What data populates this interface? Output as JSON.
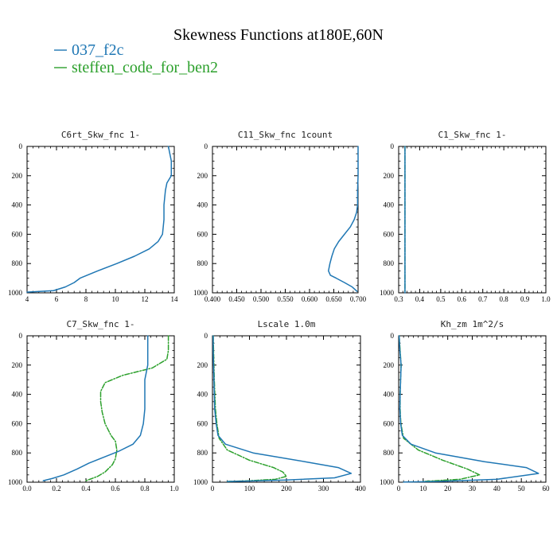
{
  "figure": {
    "title": "Skewness Functions at180E,60N"
  },
  "legend": [
    {
      "name": "037_f2c",
      "color": "#1f77b4",
      "dash": "solid"
    },
    {
      "name": "steffen_code_for_ben2",
      "color": "#2ca02c",
      "dash": "dashdot"
    }
  ],
  "chart_data": [
    {
      "type": "line",
      "title": "C6rt_Skw_fnc   1-",
      "xlim": [
        4,
        14
      ],
      "ylim": [
        1000,
        0
      ],
      "xticks": [
        "4",
        "6",
        "8",
        "10",
        "12",
        "14"
      ],
      "yticks": [
        "0",
        "200",
        "400",
        "600",
        "800",
        "1000"
      ],
      "series": [
        {
          "name": "037_f2c",
          "points": [
            [
              13.6,
              0
            ],
            [
              13.7,
              50
            ],
            [
              13.8,
              100
            ],
            [
              13.8,
              200
            ],
            [
              13.5,
              250
            ],
            [
              13.4,
              300
            ],
            [
              13.3,
              400
            ],
            [
              13.3,
              500
            ],
            [
              13.2,
              600
            ],
            [
              12.9,
              650
            ],
            [
              12.3,
              700
            ],
            [
              11.3,
              750
            ],
            [
              10.1,
              800
            ],
            [
              8.8,
              850
            ],
            [
              7.6,
              900
            ],
            [
              7.2,
              930
            ],
            [
              6.6,
              960
            ],
            [
              5.8,
              985
            ],
            [
              4,
              995
            ]
          ]
        },
        {
          "name": "steffen_code_for_ben2",
          "points": []
        }
      ]
    },
    {
      "type": "line",
      "title": "C11_Skw_fnc   1count",
      "xlim": [
        0.4,
        0.7
      ],
      "ylim": [
        1000,
        0
      ],
      "xticks": [
        "0.400",
        "0.450",
        "0.500",
        "0.550",
        "0.600",
        "0.650",
        "0.700"
      ],
      "yticks": [
        "0",
        "200",
        "400",
        "600",
        "800",
        "1000"
      ],
      "series": [
        {
          "name": "037_f2c",
          "points": [
            [
              0.7,
              0
            ],
            [
              0.7,
              100
            ],
            [
              0.7,
              200
            ],
            [
              0.699,
              300
            ],
            [
              0.699,
              400
            ],
            [
              0.697,
              450
            ],
            [
              0.692,
              500
            ],
            [
              0.684,
              550
            ],
            [
              0.672,
              600
            ],
            [
              0.66,
              650
            ],
            [
              0.651,
              700
            ],
            [
              0.646,
              750
            ],
            [
              0.642,
              800
            ],
            [
              0.639,
              850
            ],
            [
              0.643,
              880
            ],
            [
              0.655,
              900
            ],
            [
              0.672,
              930
            ],
            [
              0.688,
              960
            ],
            [
              0.698,
              990
            ]
          ]
        },
        {
          "name": "steffen_code_for_ben2",
          "points": []
        }
      ]
    },
    {
      "type": "line",
      "title": "C1_Skw_fnc   1-",
      "xlim": [
        0.3,
        1.0
      ],
      "ylim": [
        1000,
        0
      ],
      "xticks": [
        "0.3",
        "0.4",
        "0.5",
        "0.6",
        "0.7",
        "0.8",
        "0.9",
        "1.0"
      ],
      "yticks": [
        "0",
        "200",
        "400",
        "600",
        "800",
        "1000"
      ],
      "series": [
        {
          "name": "037_f2c",
          "points": [
            [
              0.33,
              0
            ],
            [
              0.33,
              1000
            ]
          ]
        },
        {
          "name": "steffen_code_for_ben2",
          "points": [
            [
              0.33,
              0
            ],
            [
              0.33,
              1000
            ]
          ]
        }
      ]
    },
    {
      "type": "line",
      "title": "C7_Skw_fnc   1-",
      "xlim": [
        0.0,
        1.0
      ],
      "ylim": [
        1000,
        0
      ],
      "xticks": [
        "0.0",
        "0.2",
        "0.4",
        "0.6",
        "0.8",
        "1.0"
      ],
      "yticks": [
        "0",
        "200",
        "400",
        "600",
        "800",
        "1000"
      ],
      "series": [
        {
          "name": "037_f2c",
          "points": [
            [
              0.82,
              0
            ],
            [
              0.82,
              100
            ],
            [
              0.82,
              200
            ],
            [
              0.8,
              300
            ],
            [
              0.8,
              400
            ],
            [
              0.8,
              500
            ],
            [
              0.79,
              600
            ],
            [
              0.77,
              680
            ],
            [
              0.72,
              740
            ],
            [
              0.62,
              790
            ],
            [
              0.52,
              830
            ],
            [
              0.42,
              870
            ],
            [
              0.34,
              910
            ],
            [
              0.25,
              950
            ],
            [
              0.17,
              975
            ],
            [
              0.11,
              990
            ]
          ]
        },
        {
          "name": "steffen_code_for_ben2",
          "points": [
            [
              0.96,
              0
            ],
            [
              0.96,
              100
            ],
            [
              0.95,
              160
            ],
            [
              0.85,
              220
            ],
            [
              0.65,
              270
            ],
            [
              0.53,
              320
            ],
            [
              0.5,
              380
            ],
            [
              0.5,
              450
            ],
            [
              0.51,
              520
            ],
            [
              0.53,
              600
            ],
            [
              0.57,
              680
            ],
            [
              0.6,
              720
            ],
            [
              0.61,
              780
            ],
            [
              0.6,
              840
            ],
            [
              0.58,
              880
            ],
            [
              0.53,
              930
            ],
            [
              0.48,
              960
            ],
            [
              0.4,
              990
            ]
          ]
        }
      ]
    },
    {
      "type": "line",
      "title": "Lscale   1.0m",
      "xlim": [
        0,
        400
      ],
      "ylim": [
        1000,
        0
      ],
      "xticks": [
        "0",
        "100",
        "200",
        "300",
        "400"
      ],
      "yticks": [
        "0",
        "200",
        "400",
        "600",
        "800",
        "1000"
      ],
      "series": [
        {
          "name": "037_f2c",
          "points": [
            [
              2,
              0
            ],
            [
              2,
              100
            ],
            [
              4,
              300
            ],
            [
              6,
              500
            ],
            [
              10,
              600
            ],
            [
              15,
              680
            ],
            [
              35,
              740
            ],
            [
              110,
              800
            ],
            [
              250,
              860
            ],
            [
              340,
              900
            ],
            [
              375,
              940
            ],
            [
              330,
              970
            ],
            [
              200,
              985
            ],
            [
              100,
              992
            ],
            [
              40,
              995
            ]
          ]
        },
        {
          "name": "steffen_code_for_ben2",
          "points": [
            [
              2,
              0
            ],
            [
              3,
              100
            ],
            [
              5,
              300
            ],
            [
              8,
              500
            ],
            [
              12,
              600
            ],
            [
              18,
              700
            ],
            [
              40,
              780
            ],
            [
              100,
              850
            ],
            [
              165,
              900
            ],
            [
              190,
              930
            ],
            [
              200,
              960
            ],
            [
              170,
              980
            ],
            [
              100,
              990
            ],
            [
              40,
              995
            ]
          ]
        }
      ]
    },
    {
      "type": "line",
      "title": "Kh_zm   1m^2/s",
      "xlim": [
        0,
        60
      ],
      "ylim": [
        1000,
        0
      ],
      "xticks": [
        "0",
        "10",
        "20",
        "30",
        "40",
        "50",
        "60"
      ],
      "yticks": [
        "0",
        "200",
        "400",
        "600",
        "800",
        "1000"
      ],
      "series": [
        {
          "name": "037_f2c",
          "points": [
            [
              0.2,
              0
            ],
            [
              0.5,
              100
            ],
            [
              1,
              200
            ],
            [
              0.8,
              300
            ],
            [
              0.6,
              400
            ],
            [
              0.5,
              500
            ],
            [
              0.8,
              600
            ],
            [
              1.5,
              680
            ],
            [
              5,
              740
            ],
            [
              15,
              800
            ],
            [
              35,
              860
            ],
            [
              52,
              900
            ],
            [
              57,
              940
            ],
            [
              40,
              980
            ],
            [
              15,
              995
            ],
            [
              2,
              999
            ]
          ]
        },
        {
          "name": "steffen_code_for_ben2",
          "points": [
            [
              0.2,
              0
            ],
            [
              0.6,
              100
            ],
            [
              1,
              200
            ],
            [
              0.8,
              300
            ],
            [
              0.6,
              400
            ],
            [
              0.6,
              500
            ],
            [
              0.9,
              600
            ],
            [
              2,
              700
            ],
            [
              8,
              780
            ],
            [
              18,
              850
            ],
            [
              28,
              910
            ],
            [
              33,
              950
            ],
            [
              25,
              980
            ],
            [
              10,
              995
            ]
          ]
        }
      ]
    }
  ]
}
